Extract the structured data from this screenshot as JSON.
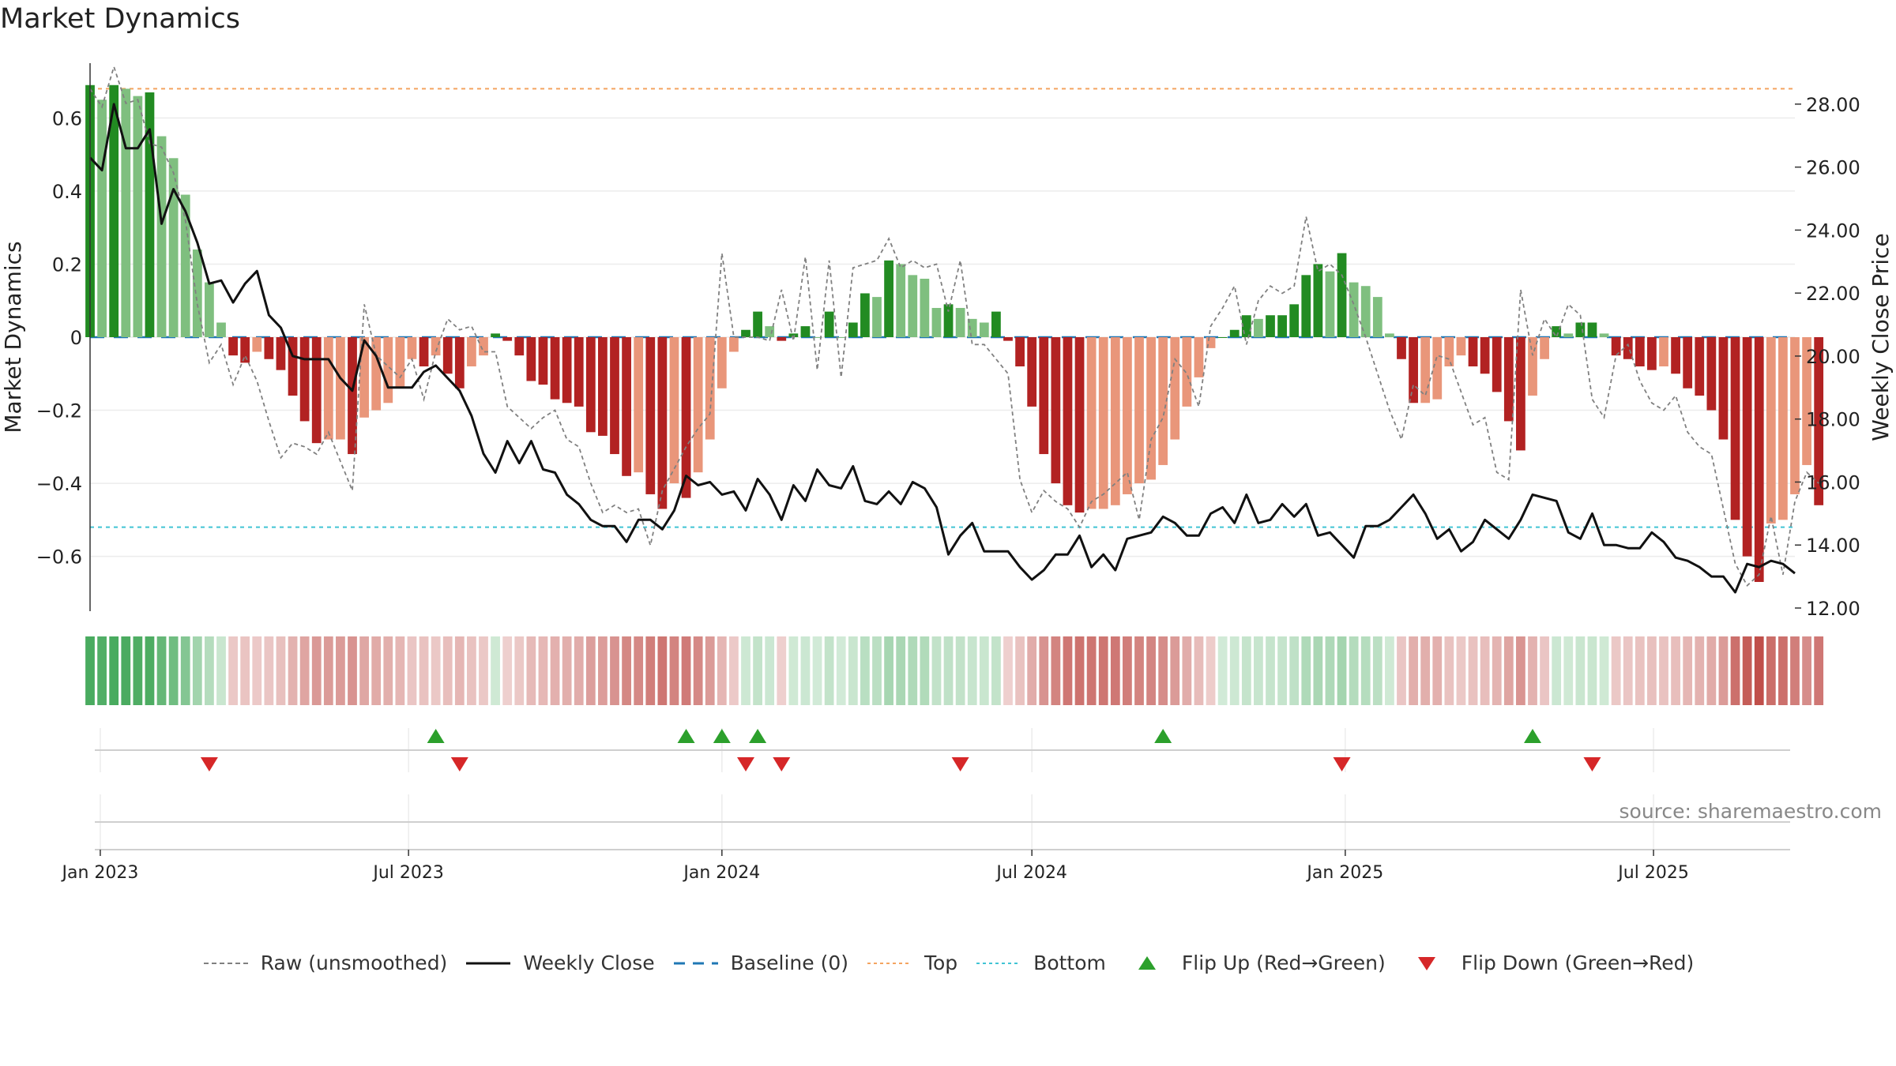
{
  "title": "Market Dynamics",
  "source": "source: sharemaestro.com",
  "colors": {
    "strong_green": "#228b22",
    "light_green": "#7fbf7f",
    "strong_red": "#b22222",
    "light_red": "#e9967a",
    "top_line": "#f4a460",
    "bottom_line": "#40c4d4",
    "baseline": "#1f77b4",
    "close_line": "#111111",
    "raw_line": "#808080",
    "flip_up": "#2ca02c",
    "flip_down": "#d62728"
  },
  "legend": [
    {
      "key": "raw",
      "label": "Raw (unsmoothed)",
      "icon": "dashed-gray-line"
    },
    {
      "key": "close",
      "label": "Weekly Close",
      "icon": "solid-black-line"
    },
    {
      "key": "baseline",
      "label": "Baseline (0)",
      "icon": "dashed-blue-line"
    },
    {
      "key": "top",
      "label": "Top",
      "icon": "dotted-orange-line"
    },
    {
      "key": "bottom",
      "label": "Bottom",
      "icon": "dotted-cyan-line"
    },
    {
      "key": "flip_up",
      "label": "Flip Up (Red→Green)",
      "icon": "green-up-triangle"
    },
    {
      "key": "flip_down",
      "label": "Flip Down (Green→Red)",
      "icon": "red-down-triangle"
    }
  ],
  "chart_data": {
    "type": "bar",
    "title": "Market Dynamics",
    "ylabel": "Market Dynamics",
    "y2label": "Weekly Close Price",
    "ylim": [
      -0.75,
      0.75
    ],
    "y2lim": [
      11.9,
      29.3
    ],
    "yticks": [
      -0.6,
      -0.4,
      -0.2,
      0,
      0.2,
      0.4,
      0.6
    ],
    "ytick_labels": [
      "−0.6",
      "−0.4",
      "−0.2",
      "0",
      "0.2",
      "0.4",
      "0.6"
    ],
    "y2ticks": [
      12,
      14,
      16,
      18,
      20,
      22,
      24,
      26,
      28
    ],
    "y2tick_labels": [
      "12.00",
      "14.00",
      "16.00",
      "18.00",
      "20.00",
      "22.00",
      "24.00",
      "26.00",
      "28.00"
    ],
    "xticks": [
      "2023-01-01",
      "2023-07-01",
      "2024-01-01",
      "2024-07-01",
      "2025-01-01",
      "2025-07-01"
    ],
    "xtick_labels": [
      "Jan 2023",
      "Jul 2023",
      "Jan 2024",
      "Jul 2024",
      "Jan 2025",
      "Jul 2025"
    ],
    "x_start": "2022-12-26",
    "x_end": "2025-09-22",
    "top": 0.68,
    "bottom": -0.52,
    "baseline": 0,
    "grid": true,
    "legend_position": "bottom",
    "weeks": 144,
    "first_week": "2022-12-26",
    "dynamics": [
      0.69,
      0.65,
      0.69,
      0.68,
      0.66,
      0.67,
      0.55,
      0.49,
      0.39,
      0.24,
      0.15,
      0.04,
      -0.05,
      -0.07,
      -0.04,
      -0.06,
      -0.09,
      -0.16,
      -0.23,
      -0.29,
      -0.28,
      -0.28,
      -0.32,
      -0.22,
      -0.2,
      -0.18,
      -0.14,
      -0.06,
      -0.08,
      -0.05,
      -0.1,
      -0.14,
      -0.08,
      -0.05,
      0.01,
      -0.01,
      -0.05,
      -0.12,
      -0.13,
      -0.17,
      -0.18,
      -0.19,
      -0.26,
      -0.27,
      -0.32,
      -0.38,
      -0.37,
      -0.43,
      -0.47,
      -0.4,
      -0.44,
      -0.37,
      -0.28,
      -0.14,
      -0.04,
      0.02,
      0.07,
      0.03,
      -0.01,
      0.01,
      0.03,
      0.0,
      0.07,
      0.0,
      0.04,
      0.12,
      0.11,
      0.21,
      0.2,
      0.17,
      0.16,
      0.08,
      0.09,
      0.08,
      0.05,
      0.04,
      0.07,
      -0.01,
      -0.08,
      -0.19,
      -0.32,
      -0.4,
      -0.46,
      -0.48,
      -0.47,
      -0.47,
      -0.46,
      -0.43,
      -0.4,
      -0.39,
      -0.35,
      -0.28,
      -0.19,
      -0.11,
      -0.03,
      0.0,
      0.02,
      0.06,
      0.05,
      0.06,
      0.06,
      0.09,
      0.17,
      0.2,
      0.18,
      0.23,
      0.15,
      0.14,
      0.11,
      0.01,
      -0.06,
      -0.18,
      -0.18,
      -0.17,
      -0.08,
      -0.05,
      -0.08,
      -0.1,
      -0.15,
      -0.23,
      -0.31,
      -0.16,
      -0.06,
      0.03,
      0.01,
      0.04,
      0.04,
      0.01,
      -0.05,
      -0.06,
      -0.08,
      -0.09,
      -0.08,
      -0.1,
      -0.14,
      -0.16,
      -0.2,
      -0.28,
      -0.5,
      -0.6,
      -0.67,
      -0.51,
      -0.5,
      -0.43,
      -0.35,
      -0.46
    ],
    "raw": [
      0.68,
      0.63,
      0.74,
      0.64,
      0.65,
      0.53,
      0.52,
      0.45,
      0.32,
      0.09,
      -0.07,
      -0.02,
      -0.13,
      -0.05,
      -0.12,
      -0.23,
      -0.33,
      -0.29,
      -0.3,
      -0.32,
      -0.26,
      -0.34,
      -0.42,
      0.09,
      -0.05,
      -0.08,
      -0.11,
      -0.06,
      -0.17,
      -0.04,
      0.05,
      0.02,
      0.03,
      -0.04,
      -0.04,
      -0.19,
      -0.22,
      -0.25,
      -0.22,
      -0.2,
      -0.28,
      -0.3,
      -0.4,
      -0.48,
      -0.46,
      -0.48,
      -0.47,
      -0.57,
      -0.42,
      -0.36,
      -0.3,
      -0.25,
      -0.21,
      0.23,
      0.0,
      0.0,
      0.0,
      -0.01,
      0.13,
      -0.01,
      0.22,
      -0.09,
      0.21,
      -0.11,
      0.19,
      0.2,
      0.21,
      0.27,
      0.19,
      0.21,
      0.19,
      0.2,
      0.07,
      0.21,
      -0.02,
      -0.02,
      -0.06,
      -0.1,
      -0.39,
      -0.48,
      -0.42,
      -0.45,
      -0.47,
      -0.52,
      -0.45,
      -0.43,
      -0.4,
      -0.37,
      -0.5,
      -0.28,
      -0.22,
      -0.06,
      -0.1,
      -0.19,
      0.03,
      0.08,
      0.14,
      -0.02,
      0.1,
      0.14,
      0.12,
      0.14,
      0.33,
      0.18,
      0.2,
      0.17,
      0.09,
      0.0,
      -0.1,
      -0.2,
      -0.28,
      -0.13,
      -0.16,
      -0.05,
      -0.06,
      -0.15,
      -0.24,
      -0.22,
      -0.37,
      -0.39,
      0.13,
      -0.05,
      0.05,
      0.0,
      0.09,
      0.06,
      -0.17,
      -0.22,
      -0.05,
      -0.02,
      -0.12,
      -0.18,
      -0.2,
      -0.16,
      -0.26,
      -0.3,
      -0.32,
      -0.47,
      -0.62,
      -0.68,
      -0.65,
      -0.49,
      -0.65,
      -0.45,
      -0.37,
      -0.4
    ],
    "close": [
      26.3,
      25.9,
      28.0,
      26.6,
      26.6,
      27.2,
      24.2,
      25.3,
      24.6,
      23.6,
      22.3,
      22.4,
      21.7,
      22.3,
      22.7,
      21.3,
      20.9,
      20.0,
      19.9,
      19.9,
      19.9,
      19.3,
      18.9,
      20.5,
      20.0,
      19.0,
      19.0,
      19.0,
      19.5,
      19.7,
      19.3,
      18.9,
      18.1,
      16.9,
      16.3,
      17.3,
      16.6,
      17.3,
      16.4,
      16.3,
      15.6,
      15.3,
      14.8,
      14.6,
      14.6,
      14.1,
      14.8,
      14.8,
      14.5,
      15.1,
      16.2,
      15.9,
      16.0,
      15.6,
      15.7,
      15.1,
      16.1,
      15.6,
      14.8,
      15.9,
      15.4,
      16.4,
      15.9,
      15.8,
      16.5,
      15.4,
      15.3,
      15.7,
      15.3,
      16.0,
      15.8,
      15.2,
      13.7,
      14.3,
      14.7,
      13.8,
      13.8,
      13.8,
      13.3,
      12.9,
      13.2,
      13.7,
      13.7,
      14.3,
      13.3,
      13.7,
      13.2,
      14.2,
      14.3,
      14.4,
      14.9,
      14.7,
      14.3,
      14.3,
      15.0,
      15.2,
      14.7,
      15.6,
      14.7,
      14.8,
      15.3,
      14.9,
      15.3,
      14.3,
      14.4,
      14.0,
      13.6,
      14.6,
      14.6,
      14.8,
      15.2,
      15.6,
      15.0,
      14.2,
      14.5,
      13.8,
      14.1,
      14.8,
      14.5,
      14.2,
      14.8,
      15.6,
      15.5,
      15.4,
      14.4,
      14.2,
      15.0,
      14.0,
      14.0,
      13.9,
      13.9,
      14.4,
      14.1,
      13.6,
      13.5,
      13.3,
      13.0,
      13.0,
      12.5,
      13.4,
      13.3,
      13.5,
      13.4,
      13.1
    ],
    "flip_up_dates": [
      "2023-07-17",
      "2023-12-11",
      "2024-01-01",
      "2024-01-22",
      "2024-09-16",
      "2025-04-21"
    ],
    "flip_down_dates": [
      "2023-03-06",
      "2023-07-31",
      "2024-01-15",
      "2024-02-05",
      "2024-05-20",
      "2024-12-30",
      "2025-05-26"
    ]
  }
}
